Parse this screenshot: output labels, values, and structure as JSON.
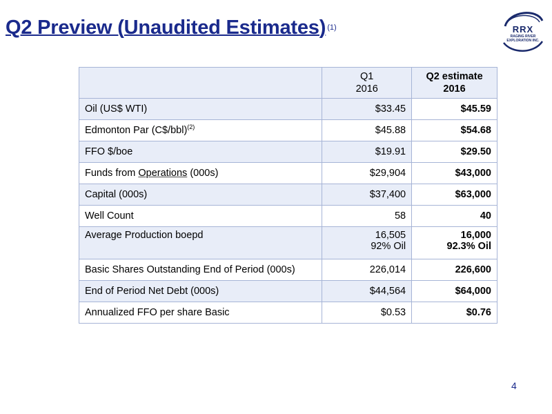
{
  "slide": {
    "title": "Q2 Preview (Unaudited Estimates)",
    "title_note": "(1)",
    "page_number": "4"
  },
  "logo": {
    "main": "RRX",
    "sub_line1": "RAGING RIVER",
    "sub_line2": "EXPLORATION INC."
  },
  "table": {
    "header": {
      "q1_line1": "Q1",
      "q1_line2": "2016",
      "q2_line1": "Q2 estimate",
      "q2_line2": "2016"
    },
    "rows": [
      {
        "label": "Oil (US$ WTI)",
        "q1": "$33.45",
        "q2": "$45.59"
      },
      {
        "label": "Edmonton Par (C$/bbl)",
        "label_note": "(2)",
        "q1": "$45.88",
        "q2": "$54.68"
      },
      {
        "label": "FFO $/boe",
        "q1": "$19.91",
        "q2": "$29.50"
      },
      {
        "label_pre": "Funds from ",
        "label_underlined": "Operations",
        "label_post": " (000s)",
        "q1": "$29,904",
        "q2": "$43,000"
      },
      {
        "label": "Capital (000s)",
        "q1": "$37,400",
        "q2": "$63,000"
      },
      {
        "label": "Well Count",
        "q1": "58",
        "q2": "40"
      },
      {
        "label": "Average Production boepd",
        "q1": "16,505",
        "q1_line2": "92% Oil",
        "q2": "16,000",
        "q2_line2": "92.3% Oil"
      },
      {
        "label": "Basic Shares Outstanding End of Period (000s)",
        "q1": "226,014",
        "q2": "226,600"
      },
      {
        "label": "End of Period Net Debt (000s)",
        "q1": "$44,564",
        "q2": "$64,000"
      },
      {
        "label": "Annualized FFO per share Basic",
        "q1": "$0.53",
        "q2": "$0.76"
      }
    ]
  },
  "colors": {
    "title": "#1a2a8c",
    "table_border": "#a6b4d6",
    "row_shade": "#e8edf8"
  }
}
